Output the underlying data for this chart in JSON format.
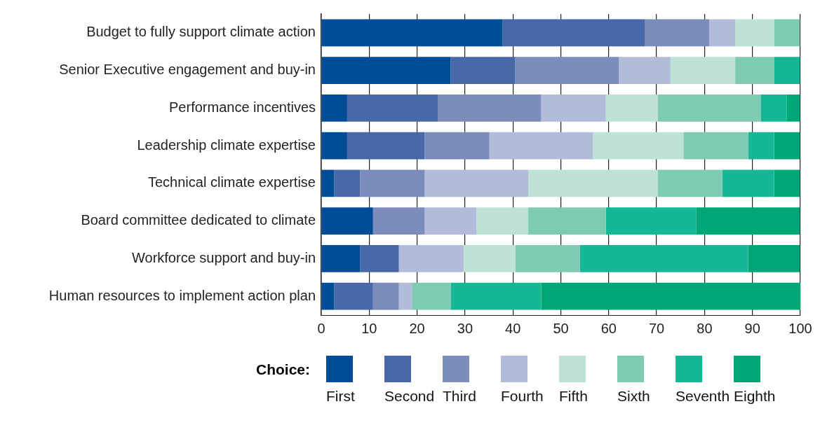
{
  "chart_data": {
    "type": "bar",
    "orientation": "horizontal",
    "stacked": true,
    "legend": "bottom",
    "legend_title": "Choice:",
    "grid": "x",
    "categories": [
      "Budget to fully support climate action",
      "Senior Executive engagement and buy-in",
      "Performance incentives",
      "Leadership climate expertise",
      "Technical climate expertise",
      "Board committee dedicated to climate",
      "Workforce support and buy-in",
      "Human resources to implement action plan"
    ],
    "xlim": [
      0,
      100
    ],
    "xticks": [
      0,
      10,
      20,
      30,
      40,
      50,
      60,
      70,
      80,
      90,
      100
    ],
    "series": [
      {
        "name": "First",
        "color": "#004c97",
        "values": [
          37.8,
          27.0,
          5.4,
          5.4,
          2.7,
          10.8,
          8.1,
          2.7
        ]
      },
      {
        "name": "Second",
        "color": "#4769a8",
        "values": [
          29.7,
          13.5,
          18.9,
          16.2,
          5.4,
          0,
          8.1,
          8.1
        ]
      },
      {
        "name": "Third",
        "color": "#7b8cbd",
        "values": [
          13.5,
          21.6,
          21.6,
          13.5,
          13.5,
          10.8,
          0,
          5.4
        ]
      },
      {
        "name": "Fourth",
        "color": "#b3bbda",
        "values": [
          5.4,
          10.8,
          13.5,
          21.6,
          21.6,
          10.8,
          13.5,
          2.7
        ]
      },
      {
        "name": "Fifth",
        "color": "#bfe2d6",
        "values": [
          8.1,
          13.5,
          10.8,
          18.9,
          27.0,
          10.8,
          10.8,
          0
        ]
      },
      {
        "name": "Sixth",
        "color": "#7fcab3",
        "values": [
          5.4,
          8.1,
          21.6,
          13.5,
          13.5,
          16.2,
          13.5,
          8.1
        ]
      },
      {
        "name": "Seventh",
        "color": "#16b794",
        "values": [
          0,
          5.4,
          5.4,
          5.4,
          10.8,
          18.9,
          35.1,
          18.9
        ]
      },
      {
        "name": "Eighth",
        "color": "#00a676",
        "values": [
          0,
          0,
          2.7,
          5.4,
          5.4,
          21.6,
          10.8,
          54.1
        ]
      }
    ]
  }
}
